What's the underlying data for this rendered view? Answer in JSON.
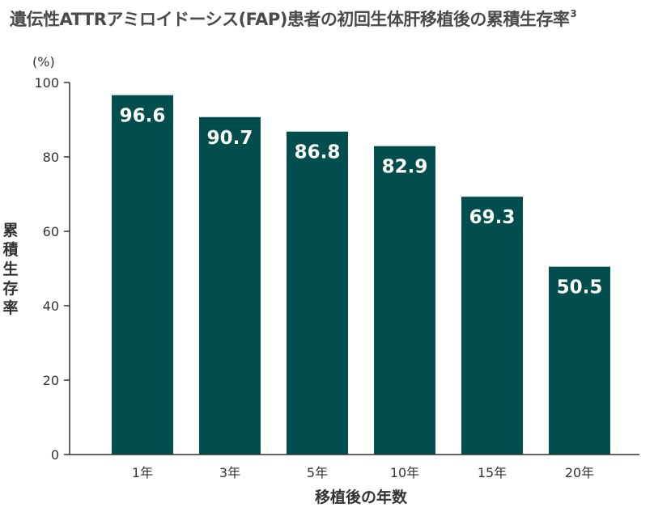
{
  "title": "遺伝性ATTRアミロイドーシス(FAP)患者の初回生体肝移植後の累積生存率",
  "title_ref": "3",
  "colors": {
    "bar": "#024e4e",
    "axis": "#333333",
    "text": "#333333"
  },
  "chart_data": {
    "type": "bar",
    "title": "遺伝性ATTRアミロイドーシス(FAP)患者の初回生体肝移植後の累積生存率",
    "categories": [
      "1年",
      "3年",
      "5年",
      "10年",
      "15年",
      "20年"
    ],
    "values": [
      96.6,
      90.7,
      86.8,
      82.9,
      69.3,
      50.5
    ],
    "data_labels": [
      "96.6",
      "90.7",
      "86.8",
      "82.9",
      "69.3",
      "50.5"
    ],
    "xlabel": "移植後の年数",
    "ylabel": "累積生存率",
    "y_unit": "(%)",
    "ylim": [
      0,
      100
    ],
    "yticks": [
      0,
      20,
      40,
      60,
      80,
      100
    ],
    "grid": false,
    "legend": "none"
  }
}
